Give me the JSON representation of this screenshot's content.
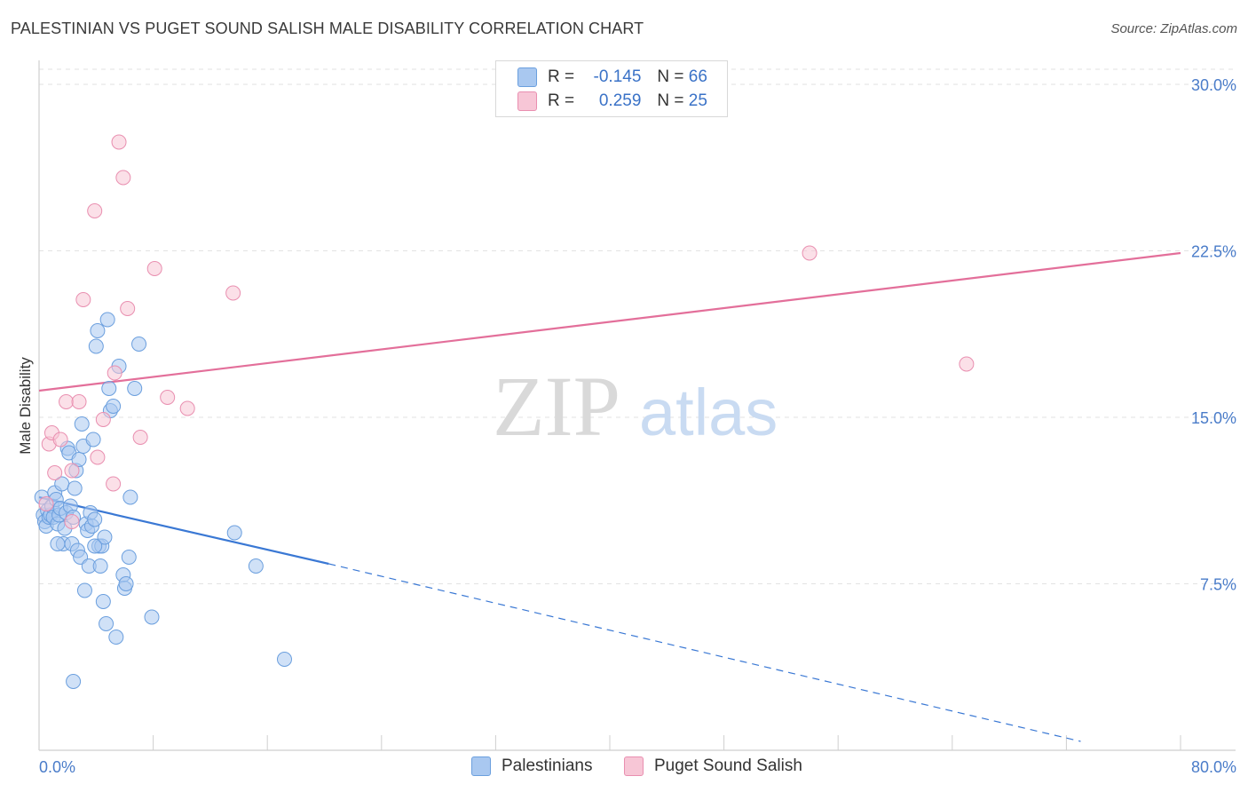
{
  "title": "PALESTINIAN VS PUGET SOUND SALISH MALE DISABILITY CORRELATION CHART",
  "source": "Source: ZipAtlas.com",
  "watermark": {
    "zip": "ZIP",
    "atlas": "atlas"
  },
  "legend": {
    "rows": [
      {
        "r_label": "R =",
        "r_value": "-0.145",
        "n_label": "N =",
        "n_value": "66",
        "color": "#a9c8f0",
        "border": "#6b9fde"
      },
      {
        "r_label": "R =",
        "r_value": "0.259",
        "n_label": "N =",
        "n_value": "25",
        "color": "#f7c6d6",
        "border": "#e98fb0"
      }
    ]
  },
  "bottom_legend": [
    "Palestinians",
    "Puget Sound Salish"
  ],
  "chart_data": {
    "type": "scatter",
    "title": "PALESTINIAN VS PUGET SOUND SALISH MALE DISABILITY CORRELATION CHART",
    "xlabel": "",
    "ylabel": "Male Disability",
    "xlim": [
      0,
      80
    ],
    "ylim": [
      0,
      31
    ],
    "x_tick_labels": [
      "0.0%",
      "80.0%"
    ],
    "y_ticks": [
      7.5,
      15.0,
      22.5,
      30.0
    ],
    "y_tick_labels": [
      "7.5%",
      "15.0%",
      "22.5%",
      "30.0%"
    ],
    "series": [
      {
        "name": "Palestinians",
        "color": "#6b9fde",
        "fill": "#a9c8f0",
        "trend": {
          "x0": 0,
          "y0": 11.4,
          "x1": 20.3,
          "y1": 8.4,
          "dash_to_x": 73,
          "dash_to_y": 0.4
        },
        "points": [
          [
            0.2,
            11.4
          ],
          [
            0.3,
            10.6
          ],
          [
            0.4,
            10.3
          ],
          [
            0.5,
            10.1
          ],
          [
            0.6,
            10.8
          ],
          [
            0.7,
            10.5
          ],
          [
            0.8,
            10.6
          ],
          [
            0.9,
            11.0
          ],
          [
            1.0,
            10.5
          ],
          [
            1.1,
            11.6
          ],
          [
            1.2,
            11.3
          ],
          [
            1.3,
            10.2
          ],
          [
            1.4,
            10.6
          ],
          [
            1.5,
            10.9
          ],
          [
            1.6,
            12.0
          ],
          [
            1.7,
            9.3
          ],
          [
            1.8,
            10.0
          ],
          [
            1.9,
            10.7
          ],
          [
            2.0,
            13.6
          ],
          [
            2.1,
            13.4
          ],
          [
            2.2,
            11.0
          ],
          [
            2.3,
            9.3
          ],
          [
            2.4,
            10.5
          ],
          [
            2.5,
            11.8
          ],
          [
            2.6,
            12.6
          ],
          [
            2.7,
            9.0
          ],
          [
            2.8,
            13.1
          ],
          [
            2.9,
            8.7
          ],
          [
            3.0,
            14.7
          ],
          [
            3.1,
            13.7
          ],
          [
            3.2,
            7.2
          ],
          [
            3.3,
            10.2
          ],
          [
            3.4,
            9.9
          ],
          [
            3.5,
            8.3
          ],
          [
            3.6,
            10.7
          ],
          [
            3.7,
            10.1
          ],
          [
            3.8,
            14.0
          ],
          [
            3.9,
            10.4
          ],
          [
            4.0,
            18.2
          ],
          [
            4.1,
            18.9
          ],
          [
            4.2,
            9.2
          ],
          [
            4.3,
            8.3
          ],
          [
            4.4,
            9.2
          ],
          [
            4.5,
            6.7
          ],
          [
            4.6,
            9.6
          ],
          [
            4.7,
            5.7
          ],
          [
            4.8,
            19.4
          ],
          [
            4.9,
            16.3
          ],
          [
            5.0,
            15.3
          ],
          [
            5.2,
            15.5
          ],
          [
            5.4,
            5.1
          ],
          [
            5.6,
            17.3
          ],
          [
            5.9,
            7.9
          ],
          [
            6.0,
            7.3
          ],
          [
            6.1,
            7.5
          ],
          [
            6.3,
            8.7
          ],
          [
            6.4,
            11.4
          ],
          [
            6.7,
            16.3
          ],
          [
            7.0,
            18.3
          ],
          [
            7.9,
            6.0
          ],
          [
            13.7,
            9.8
          ],
          [
            15.2,
            8.3
          ],
          [
            17.2,
            4.1
          ],
          [
            2.4,
            3.1
          ],
          [
            1.3,
            9.3
          ],
          [
            3.9,
            9.2
          ]
        ]
      },
      {
        "name": "Puget Sound Salish",
        "color": "#e98fb0",
        "fill": "#f7c6d6",
        "trend": {
          "x0": 0,
          "y0": 16.2,
          "x1": 80,
          "y1": 22.4
        },
        "points": [
          [
            0.5,
            11.1
          ],
          [
            0.7,
            13.8
          ],
          [
            0.9,
            14.3
          ],
          [
            1.1,
            12.5
          ],
          [
            1.5,
            14.0
          ],
          [
            1.9,
            15.7
          ],
          [
            2.3,
            12.6
          ],
          [
            2.3,
            10.3
          ],
          [
            2.8,
            15.7
          ],
          [
            3.1,
            20.3
          ],
          [
            3.9,
            24.3
          ],
          [
            4.1,
            13.2
          ],
          [
            4.5,
            14.9
          ],
          [
            5.2,
            12.0
          ],
          [
            5.3,
            17.0
          ],
          [
            5.6,
            27.4
          ],
          [
            5.9,
            25.8
          ],
          [
            6.2,
            19.9
          ],
          [
            7.1,
            14.1
          ],
          [
            8.1,
            21.7
          ],
          [
            9.0,
            15.9
          ],
          [
            10.4,
            15.4
          ],
          [
            13.6,
            20.6
          ],
          [
            54.0,
            22.4
          ],
          [
            65.0,
            17.4
          ]
        ]
      }
    ]
  }
}
